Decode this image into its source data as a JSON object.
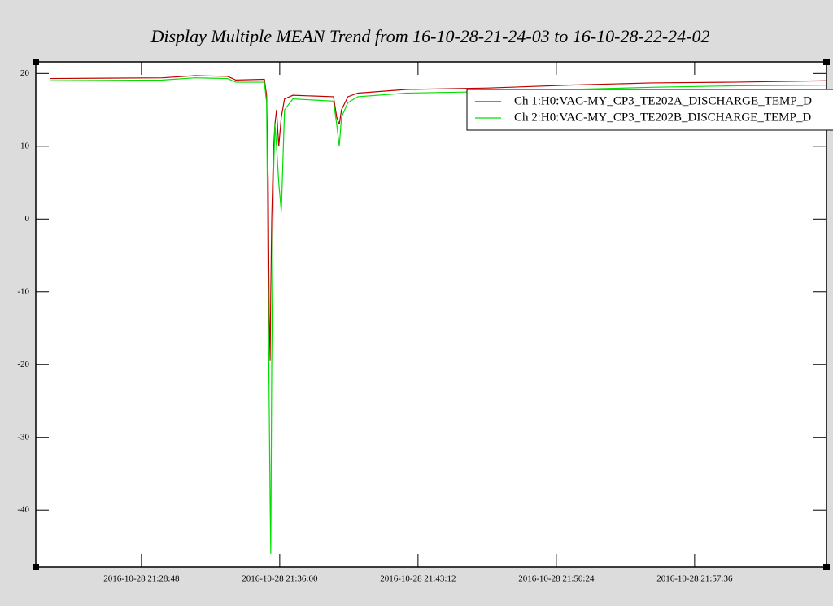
{
  "chart_data": {
    "type": "line",
    "title": "Display Multiple MEAN Trend from 16-10-28-21-24-03 to 16-10-28-22-24-02",
    "x": [
      "2016-10-28 21:24:03",
      "2016-10-28 21:29:54",
      "2016-10-28 21:31:36",
      "2016-10-28 21:33:17",
      "2016-10-28 21:33:43",
      "2016-10-28 21:35:12",
      "2016-10-28 21:35:19",
      "2016-10-28 21:35:24",
      "2016-10-28 21:35:27",
      "2016-10-28 21:35:30",
      "2016-10-28 21:35:32",
      "2016-10-28 21:35:35",
      "2016-10-28 21:35:40",
      "2016-10-28 21:35:45",
      "2016-10-28 21:35:50",
      "2016-10-28 21:35:57",
      "2016-10-28 21:36:05",
      "2016-10-28 21:36:15",
      "2016-10-28 21:36:41",
      "2016-10-28 21:38:48",
      "2016-10-28 21:38:58",
      "2016-10-28 21:39:06",
      "2016-10-28 21:39:13",
      "2016-10-28 21:39:33",
      "2016-10-28 21:40:04",
      "2016-10-28 21:42:36",
      "2016-10-28 21:46:51",
      "2016-10-28 21:51:05",
      "2016-10-28 21:55:19",
      "2016-10-28 21:59:33",
      "2016-10-28 22:04:28"
    ],
    "series": [
      {
        "name": "Ch 1:H0:VAC-MY_CP3_TE202A_DISCHARGE_TEMP_D",
        "color": "#c00000",
        "values": [
          19.3,
          19.4,
          19.7,
          19.6,
          19.1,
          19.2,
          17,
          5,
          -13,
          -19.5,
          -10,
          0,
          9,
          13,
          15,
          10,
          14,
          16.5,
          17,
          16.8,
          14,
          13,
          15,
          16.8,
          17.3,
          17.8,
          18,
          18.4,
          18.7,
          18.8,
          19
        ]
      },
      {
        "name": "Ch 2:H0:VAC-MY_CP3_TE202B_DISCHARGE_TEMP_D",
        "color": "#00e000",
        "values": [
          19,
          19.1,
          19.4,
          19.3,
          18.8,
          18.8,
          16,
          -10,
          -25,
          -39,
          -46,
          -20,
          5,
          13,
          10,
          5,
          1,
          15,
          16.5,
          16.2,
          13,
          10,
          14,
          16,
          16.8,
          17.3,
          17.5,
          17.8,
          18.1,
          18.3,
          18.4
        ]
      }
    ],
    "xlim": [
      "2016-10-28 21:23:18",
      "2016-10-28 22:04:28"
    ],
    "xticks": [
      "2016-10-28 21:28:48",
      "2016-10-28 21:36:00",
      "2016-10-28 21:43:12",
      "2016-10-28 21:50:24",
      "2016-10-28 21:57:36"
    ],
    "ylim": [
      -47.8,
      21.6
    ],
    "yticks": [
      20,
      10,
      0,
      -10,
      -20,
      -30,
      -40
    ]
  }
}
